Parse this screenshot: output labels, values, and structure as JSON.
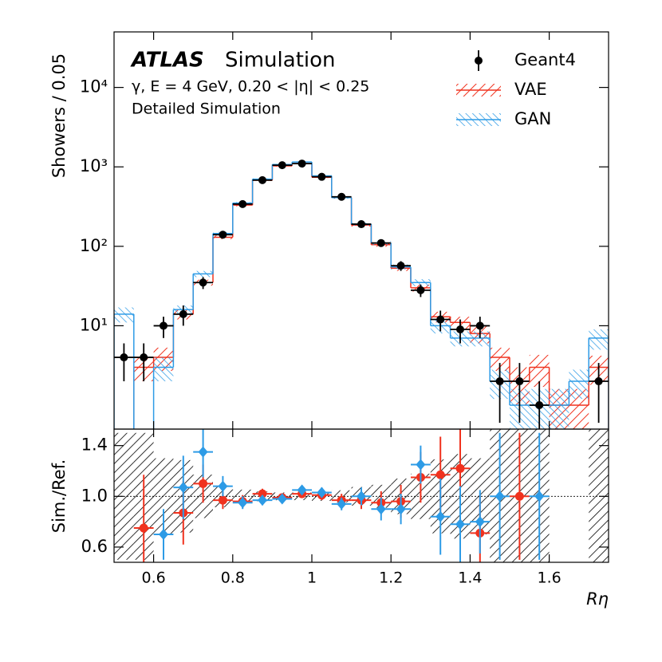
{
  "chart_data": {
    "type": "histogram",
    "atlas": "ATLAS",
    "title": "Simulation",
    "subtitle": "γ, E = 4 GeV, 0.20 < |η| < 0.25",
    "note": "Detailed Simulation",
    "ylabel": "Showers / 0.05",
    "ratio_ylabel": "Sim./Ref.",
    "xlabel": "Rη",
    "bins": [
      0.5,
      0.55,
      0.6,
      0.65,
      0.7,
      0.75,
      0.8,
      0.85,
      0.9,
      0.95,
      1.0,
      1.05,
      1.1,
      1.15,
      1.2,
      1.25,
      1.3,
      1.35,
      1.4,
      1.45,
      1.5,
      1.55,
      1.6,
      1.65,
      1.7,
      1.75
    ],
    "xlim": [
      0.5,
      1.75
    ],
    "xticks": [
      0.6,
      0.8,
      1,
      1.2,
      1.4,
      1.6
    ],
    "ylim": [
      0.5,
      50000
    ],
    "log_y": true,
    "yticks": [
      {
        "value": 10,
        "label": "10¹"
      },
      {
        "value": 100,
        "label": "10²"
      },
      {
        "value": 1000,
        "label": "10³"
      },
      {
        "value": 10000,
        "label": "10⁴"
      }
    ],
    "ratio_ylim": [
      0.48,
      1.53
    ],
    "ratio_yticks": [
      0.6,
      {
        "value": 1,
        "label": "1.0"
      },
      1.4
    ],
    "legend": "upper right",
    "series": [
      {
        "name": "Geant4",
        "style": "points",
        "color": "#000000",
        "values": [
          4,
          4,
          10,
          14,
          35,
          140,
          340,
          680,
          1050,
          1100,
          750,
          420,
          190,
          110,
          57,
          28,
          12,
          9,
          10,
          2,
          2,
          1,
          null,
          null,
          2
        ],
        "errors": [
          2,
          2,
          3,
          4,
          6,
          12,
          18,
          26,
          32,
          33,
          27,
          20,
          14,
          10,
          8,
          5,
          3.5,
          3,
          3,
          1.4,
          1.4,
          1,
          null,
          null,
          1.4
        ]
      },
      {
        "name": "VAE",
        "style": "hatch",
        "color": "#f0321e",
        "values": [
          null,
          3,
          4,
          14,
          35,
          130,
          330,
          680,
          1030,
          1100,
          740,
          410,
          185,
          105,
          53,
          30,
          13,
          11,
          8,
          4,
          2,
          3,
          1,
          1,
          3
        ],
        "errors": [
          null,
          1,
          1.3,
          2,
          3,
          7,
          11,
          16,
          20,
          20,
          17,
          12,
          8,
          6,
          4,
          3,
          2,
          2,
          2,
          1.3,
          1,
          1.3,
          0.6,
          0.6,
          1.2
        ],
        "ratio": [
          null,
          0.75,
          null,
          0.87,
          1.1,
          0.97,
          0.96,
          1.02,
          0.99,
          1.02,
          1.01,
          0.97,
          0.97,
          0.95,
          0.96,
          1.15,
          1.17,
          1.22,
          0.71,
          null,
          1.0,
          null,
          null,
          null,
          null
        ],
        "ratio_errors": [
          null,
          0.42,
          null,
          0.25,
          0.15,
          0.07,
          0.05,
          0.04,
          0.03,
          0.03,
          0.04,
          0.05,
          0.07,
          0.09,
          0.13,
          0.2,
          0.3,
          0.35,
          0.3,
          null,
          0.5,
          null,
          null,
          null,
          null
        ]
      },
      {
        "name": "GAN",
        "style": "hatch",
        "color": "#2d9be6",
        "values": [
          14,
          null,
          3,
          16,
          45,
          145,
          350,
          700,
          1070,
          1150,
          770,
          410,
          190,
          110,
          55,
          35,
          10,
          7,
          7,
          2,
          1,
          1,
          1,
          2,
          7
        ],
        "errors": [
          3,
          null,
          1,
          2,
          4,
          7,
          11,
          16,
          20,
          21,
          17,
          12,
          8,
          6,
          4,
          3.5,
          2,
          1.5,
          1.5,
          0.8,
          0.6,
          0.6,
          0.6,
          0.8,
          2
        ],
        "ratio": [
          null,
          null,
          0.7,
          1.07,
          1.35,
          1.08,
          0.95,
          0.97,
          0.98,
          1.05,
          1.03,
          0.94,
          1.0,
          0.9,
          0.9,
          1.25,
          0.84,
          0.78,
          0.8,
          1.0,
          null,
          1.0,
          null,
          null,
          null
        ],
        "ratio_errors": [
          null,
          null,
          0.2,
          0.25,
          0.2,
          0.08,
          0.05,
          0.04,
          0.03,
          0.03,
          0.04,
          0.05,
          0.07,
          0.09,
          0.12,
          0.15,
          0.3,
          0.3,
          0.25,
          0.5,
          null,
          0.5,
          null,
          null,
          null
        ]
      }
    ]
  }
}
